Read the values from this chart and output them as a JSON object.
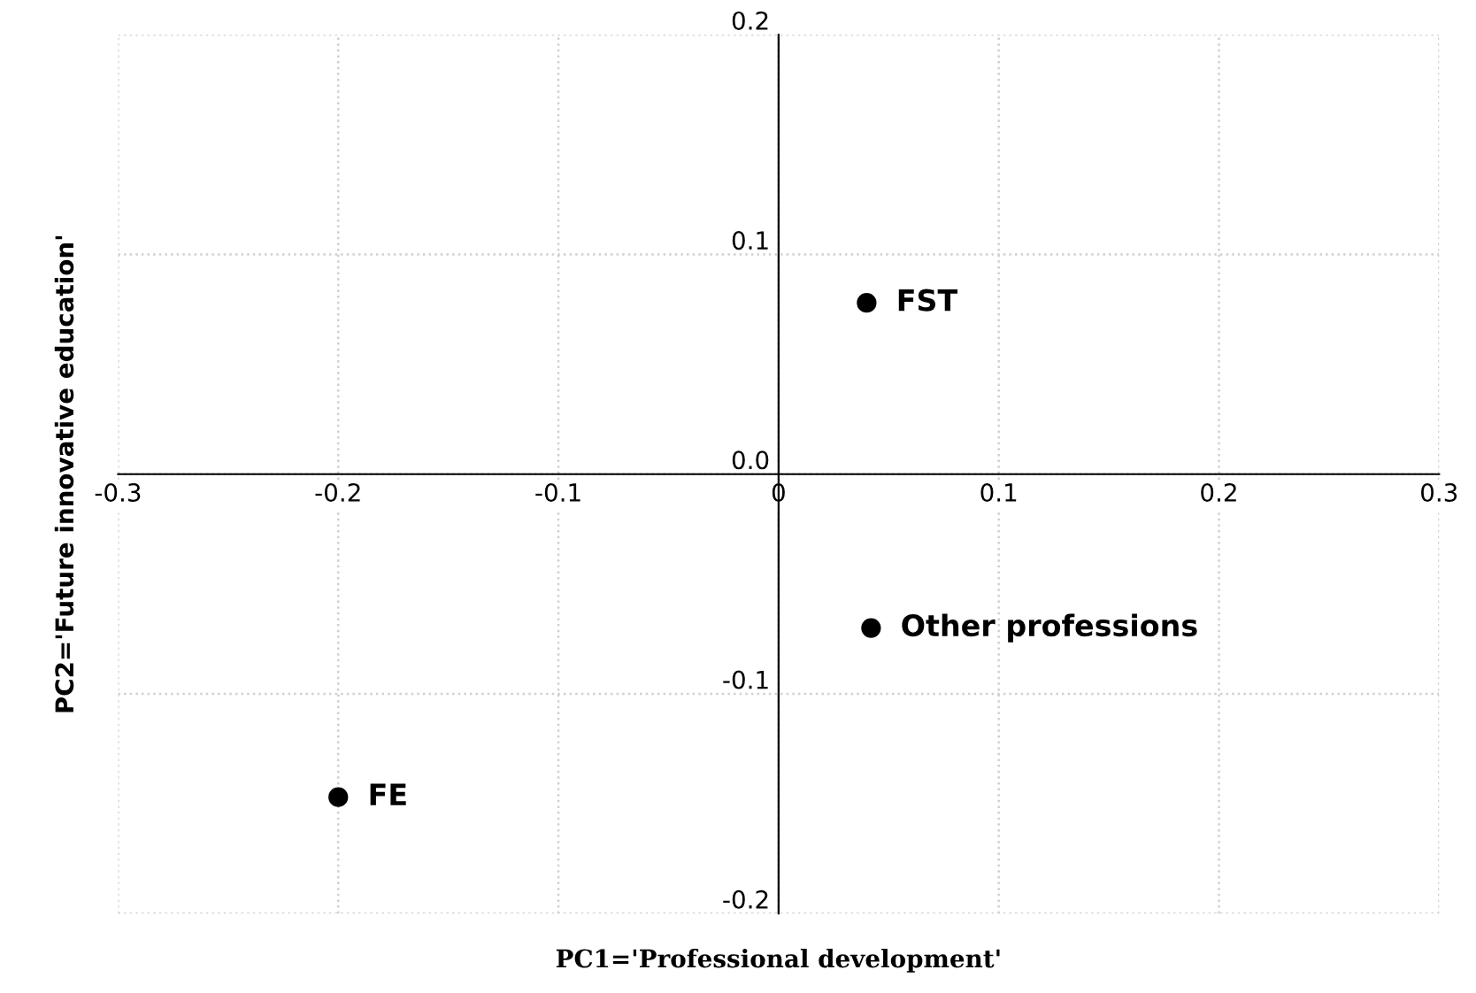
{
  "chart_data": {
    "type": "scatter",
    "xlabel": "PC1='Professional development'",
    "ylabel": "PC2='Future innovative education'",
    "series": [
      {
        "color": "#000000",
        "x": [
          0.04,
          0.042,
          -0.2
        ],
        "values": [
          0.078,
          -0.07,
          -0.147
        ]
      }
    ],
    "annotations": [
      {
        "text": "FST",
        "x": 0.04,
        "y": 0.078
      },
      {
        "text": "Other professions",
        "x": 0.042,
        "y": -0.07
      },
      {
        "text": "FE",
        "x": -0.2,
        "y": -0.147
      }
    ],
    "xlim": [
      -0.3,
      0.3
    ],
    "ylim": [
      -0.2,
      0.2
    ],
    "xticks": [
      -0.3,
      -0.2,
      -0.1,
      0,
      0.1,
      0.2,
      0.3
    ],
    "yticks": [
      -0.2,
      -0.1,
      {
        "value": 0,
        "label": "0.0"
      },
      0.1,
      0.2
    ],
    "grid": true,
    "marker": "circle",
    "legend": false
  }
}
